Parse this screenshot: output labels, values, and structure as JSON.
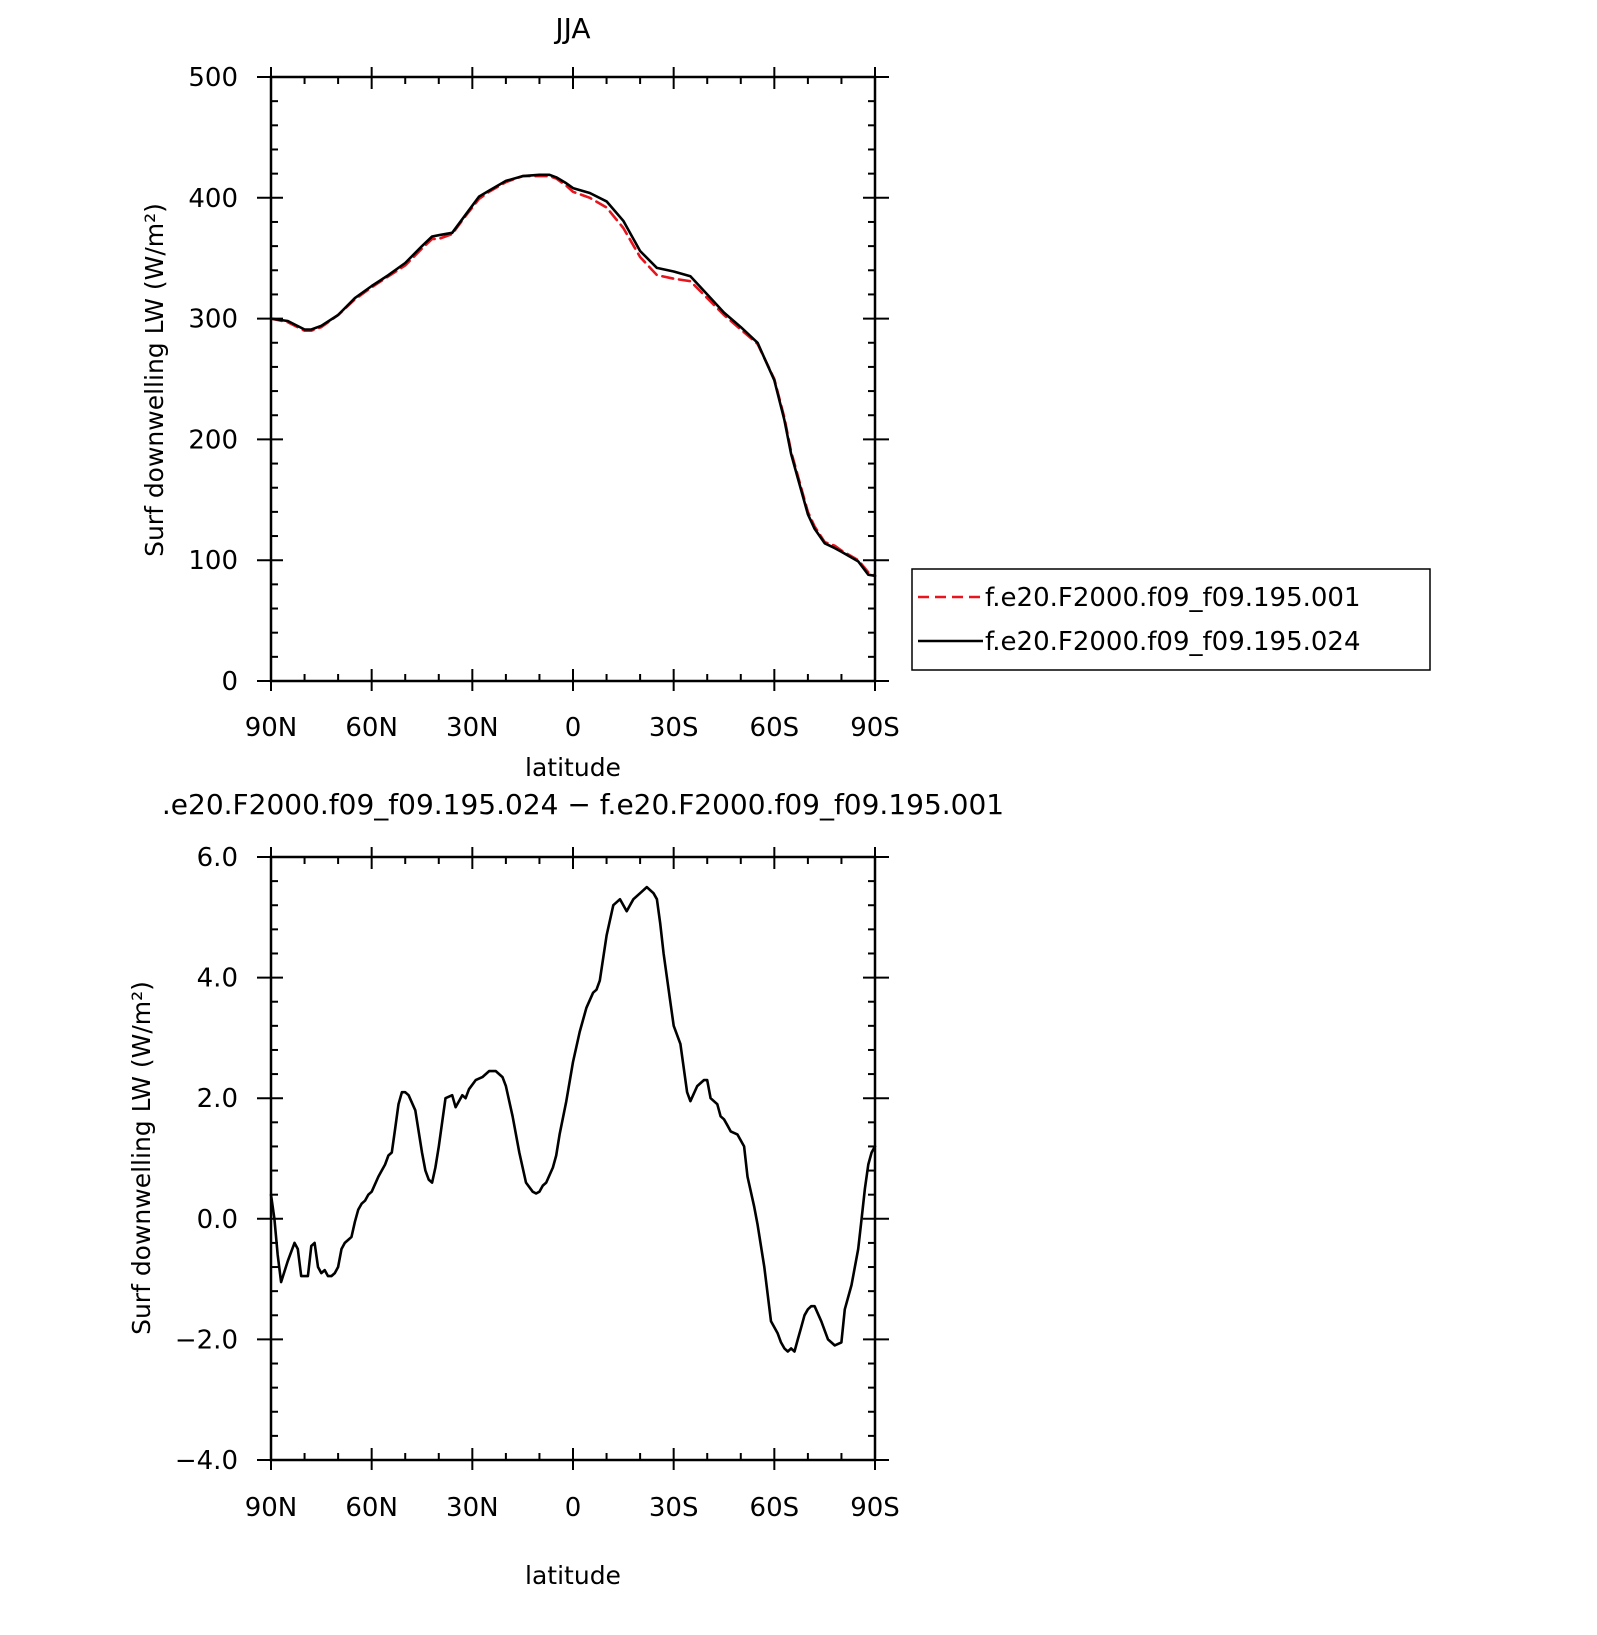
{
  "chart_data": [
    {
      "type": "line",
      "title": "JJA",
      "xlabel": "latitude",
      "ylabel": "Surf downwelling LW (W/m²)",
      "xlim": [
        90,
        -90
      ],
      "ylim": [
        0,
        500
      ],
      "xticks": [
        90,
        60,
        30,
        0,
        -30,
        -60,
        -90
      ],
      "xtick_labels": [
        "90N",
        "60N",
        "30N",
        "0",
        "30S",
        "60S",
        "90S"
      ],
      "yticks": [
        0,
        100,
        200,
        300,
        400,
        500
      ],
      "ytick_labels": [
        "0",
        "100",
        "200",
        "300",
        "400",
        "500"
      ],
      "legend_position": "right",
      "grid": false,
      "series": [
        {
          "name": "f.e20.F2000.f09_f09.195.001",
          "color": "#e8141e",
          "style": "dashed",
          "x": [
            90,
            85,
            80,
            78,
            75,
            70,
            65,
            60,
            55,
            50,
            45,
            42,
            40,
            36,
            32,
            28,
            25,
            20,
            15,
            10,
            7,
            5,
            2,
            0,
            -5,
            -10,
            -15,
            -20,
            -25,
            -30,
            -35,
            -40,
            -45,
            -50,
            -55,
            -60,
            -63,
            -65,
            -67,
            -70,
            -72,
            -75,
            -78,
            -80,
            -85,
            -88,
            -90
          ],
          "y": [
            300,
            297,
            290,
            290,
            293,
            303,
            316,
            326,
            335,
            344,
            358,
            366,
            366,
            370,
            385,
            399,
            405,
            413,
            418,
            418,
            418,
            416,
            410,
            405,
            400,
            392,
            375,
            351,
            336,
            333,
            331,
            317,
            303,
            291,
            279,
            250,
            218,
            190,
            170,
            140,
            128,
            115,
            112,
            108,
            100,
            90,
            87
          ]
        },
        {
          "name": "f.e20.F2000.f09_f09.195.024",
          "color": "#000000",
          "style": "solid",
          "x": [
            90,
            85,
            80,
            78,
            75,
            70,
            65,
            60,
            55,
            50,
            45,
            42,
            40,
            36,
            32,
            28,
            25,
            20,
            15,
            10,
            7,
            5,
            2,
            0,
            -5,
            -10,
            -15,
            -20,
            -25,
            -30,
            -35,
            -40,
            -45,
            -50,
            -55,
            -60,
            -63,
            -65,
            -67,
            -70,
            -72,
            -75,
            -78,
            -80,
            -85,
            -88,
            -90
          ],
          "y": [
            300,
            298,
            291,
            291,
            294,
            303,
            317,
            327,
            336,
            346,
            360,
            368,
            369,
            371,
            386,
            401,
            406,
            414,
            418,
            419,
            419,
            417,
            412,
            408,
            404,
            397,
            381,
            356,
            342,
            339,
            335,
            320,
            305,
            293,
            280,
            249,
            216,
            188,
            168,
            138,
            126,
            114,
            110,
            107,
            99,
            88,
            87
          ]
        }
      ]
    },
    {
      "type": "line",
      "title": ".e20.F2000.f09_f09.195.024 − f.e20.F2000.f09_f09.195.001",
      "xlabel": "latitude",
      "ylabel": "Surf downwelling LW (W/m²)",
      "xlim": [
        90,
        -90
      ],
      "ylim": [
        -4.0,
        6.0
      ],
      "xticks": [
        90,
        60,
        30,
        0,
        -30,
        -60,
        -90
      ],
      "xtick_labels": [
        "90N",
        "60N",
        "30N",
        "0",
        "30S",
        "60S",
        "90S"
      ],
      "yticks": [
        -4.0,
        -2.0,
        0.0,
        2.0,
        4.0,
        6.0
      ],
      "ytick_labels": [
        "−4.0",
        "−2.0",
        "0.0",
        "2.0",
        "4.0",
        "6.0"
      ],
      "grid": false,
      "series": [
        {
          "color": "#000000",
          "style": "solid",
          "x": [
            90,
            89,
            88,
            87,
            85,
            83,
            82,
            81,
            80,
            79,
            78,
            77,
            76,
            75,
            74,
            73,
            72,
            71,
            70,
            69,
            68,
            67,
            66,
            65,
            64,
            63,
            62,
            61,
            60,
            58,
            56,
            55,
            54,
            53,
            52,
            51,
            50,
            49,
            47,
            45,
            44,
            43,
            42,
            41,
            40,
            38,
            36,
            35,
            33,
            32,
            31,
            29,
            27,
            25,
            23,
            21,
            20,
            18,
            16,
            14,
            12,
            11,
            10,
            9,
            8,
            6,
            5,
            4,
            2,
            0,
            -2,
            -4,
            -6,
            -7,
            -8,
            -10,
            -12,
            -14,
            -16,
            -17,
            -18,
            -20,
            -22,
            -24,
            -25,
            -26,
            -27,
            -29,
            -30,
            -32,
            -34,
            -35,
            -37,
            -39,
            -40,
            -41,
            -43,
            -44,
            -45,
            -46,
            -47,
            -49,
            -51,
            -52,
            -54,
            -55,
            -57,
            -59,
            -61,
            -62,
            -63,
            -64,
            -65,
            -66,
            -67,
            -68,
            -69,
            -70,
            -71,
            -72,
            -74,
            -76,
            -78,
            -80,
            -81,
            -83,
            -85,
            -86,
            -87,
            -88,
            -89,
            -90
          ],
          "y": [
            0.4,
            0.0,
            -0.6,
            -1.05,
            -0.7,
            -0.4,
            -0.5,
            -0.95,
            -0.95,
            -0.95,
            -0.45,
            -0.4,
            -0.8,
            -0.9,
            -0.85,
            -0.95,
            -0.95,
            -0.9,
            -0.8,
            -0.5,
            -0.4,
            -0.35,
            -0.3,
            -0.05,
            0.15,
            0.25,
            0.3,
            0.4,
            0.45,
            0.7,
            0.9,
            1.05,
            1.1,
            1.5,
            1.9,
            2.1,
            2.1,
            2.05,
            1.8,
            1.1,
            0.8,
            0.65,
            0.6,
            0.85,
            1.2,
            2.0,
            2.05,
            1.85,
            2.05,
            2.0,
            2.15,
            2.3,
            2.35,
            2.45,
            2.45,
            2.35,
            2.2,
            1.7,
            1.1,
            0.6,
            0.45,
            0.42,
            0.45,
            0.55,
            0.6,
            0.85,
            1.05,
            1.4,
            1.95,
            2.6,
            3.1,
            3.5,
            3.75,
            3.8,
            3.95,
            4.7,
            5.2,
            5.3,
            5.1,
            5.2,
            5.3,
            5.4,
            5.5,
            5.4,
            5.3,
            4.9,
            4.4,
            3.6,
            3.2,
            2.9,
            2.1,
            1.95,
            2.2,
            2.3,
            2.3,
            2.0,
            1.9,
            1.7,
            1.65,
            1.55,
            1.45,
            1.4,
            1.2,
            0.7,
            0.2,
            -0.1,
            -0.8,
            -1.7,
            -1.9,
            -2.05,
            -2.15,
            -2.2,
            -2.15,
            -2.2,
            -2.0,
            -1.8,
            -1.6,
            -1.5,
            -1.45,
            -1.45,
            -1.7,
            -2.0,
            -2.1,
            -2.05,
            -1.5,
            -1.1,
            -0.5,
            0.0,
            0.5,
            0.9,
            1.1,
            1.2
          ]
        }
      ]
    }
  ],
  "legend": {
    "entries": [
      "f.e20.F2000.f09_f09.195.001",
      "f.e20.F2000.f09_f09.195.024"
    ]
  }
}
